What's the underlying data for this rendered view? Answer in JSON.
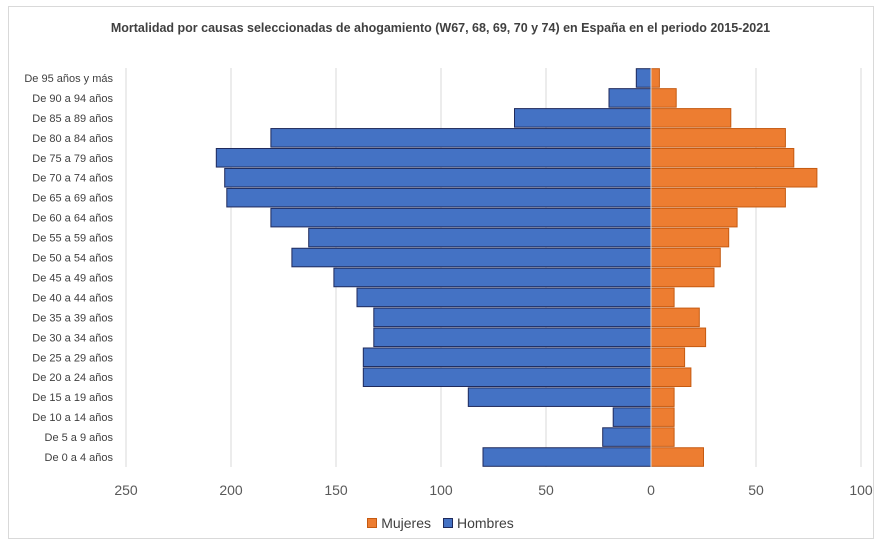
{
  "chart_data": {
    "type": "bar",
    "orientation": "horizontal-population-pyramid",
    "title": "Mortalidad por causas seleccionadas de ahogamiento (W67, 68, 69, 70 y 74) en España en el  periodo 2015-2021",
    "categories": [
      "De 95 años y más",
      "De 90 a 94 años",
      "De 85 a 89 años",
      "De 80 a 84 años",
      "De 75 a 79 años",
      "De 70 a 74 años",
      "De 65 a 69 años",
      "De 60 a 64 años",
      "De 55 a 59 años",
      "De 50 a 54 años",
      "De 45 a 49 años",
      "De 40 a 44 años",
      "De 35 a 39 años",
      "De 30 a 34 años",
      "De 25 a 29 años",
      "De 20 a 24 años",
      "De 15 a 19 años",
      "De 10 a 14 años",
      "De 5 a 9 años",
      "De 0 a 4 años"
    ],
    "series": [
      {
        "name": "Mujeres",
        "color": "#ed7d31",
        "edge": "#c55a11",
        "values": [
          4,
          12,
          38,
          64,
          68,
          79,
          64,
          41,
          37,
          33,
          30,
          11,
          23,
          26,
          16,
          19,
          11,
          11,
          11,
          25
        ]
      },
      {
        "name": "Hombres",
        "color": "#4472c4",
        "edge": "#1f2a5c",
        "values": [
          7,
          20,
          65,
          181,
          207,
          203,
          202,
          181,
          163,
          171,
          151,
          140,
          132,
          132,
          137,
          137,
          87,
          18,
          23,
          80
        ]
      }
    ],
    "xticks": [
      "250",
      "200",
      "150",
      "100",
      "50",
      "0",
      "50",
      "100"
    ],
    "xlim": [
      -250,
      100
    ],
    "grid": true,
    "legend_position": "bottom"
  }
}
